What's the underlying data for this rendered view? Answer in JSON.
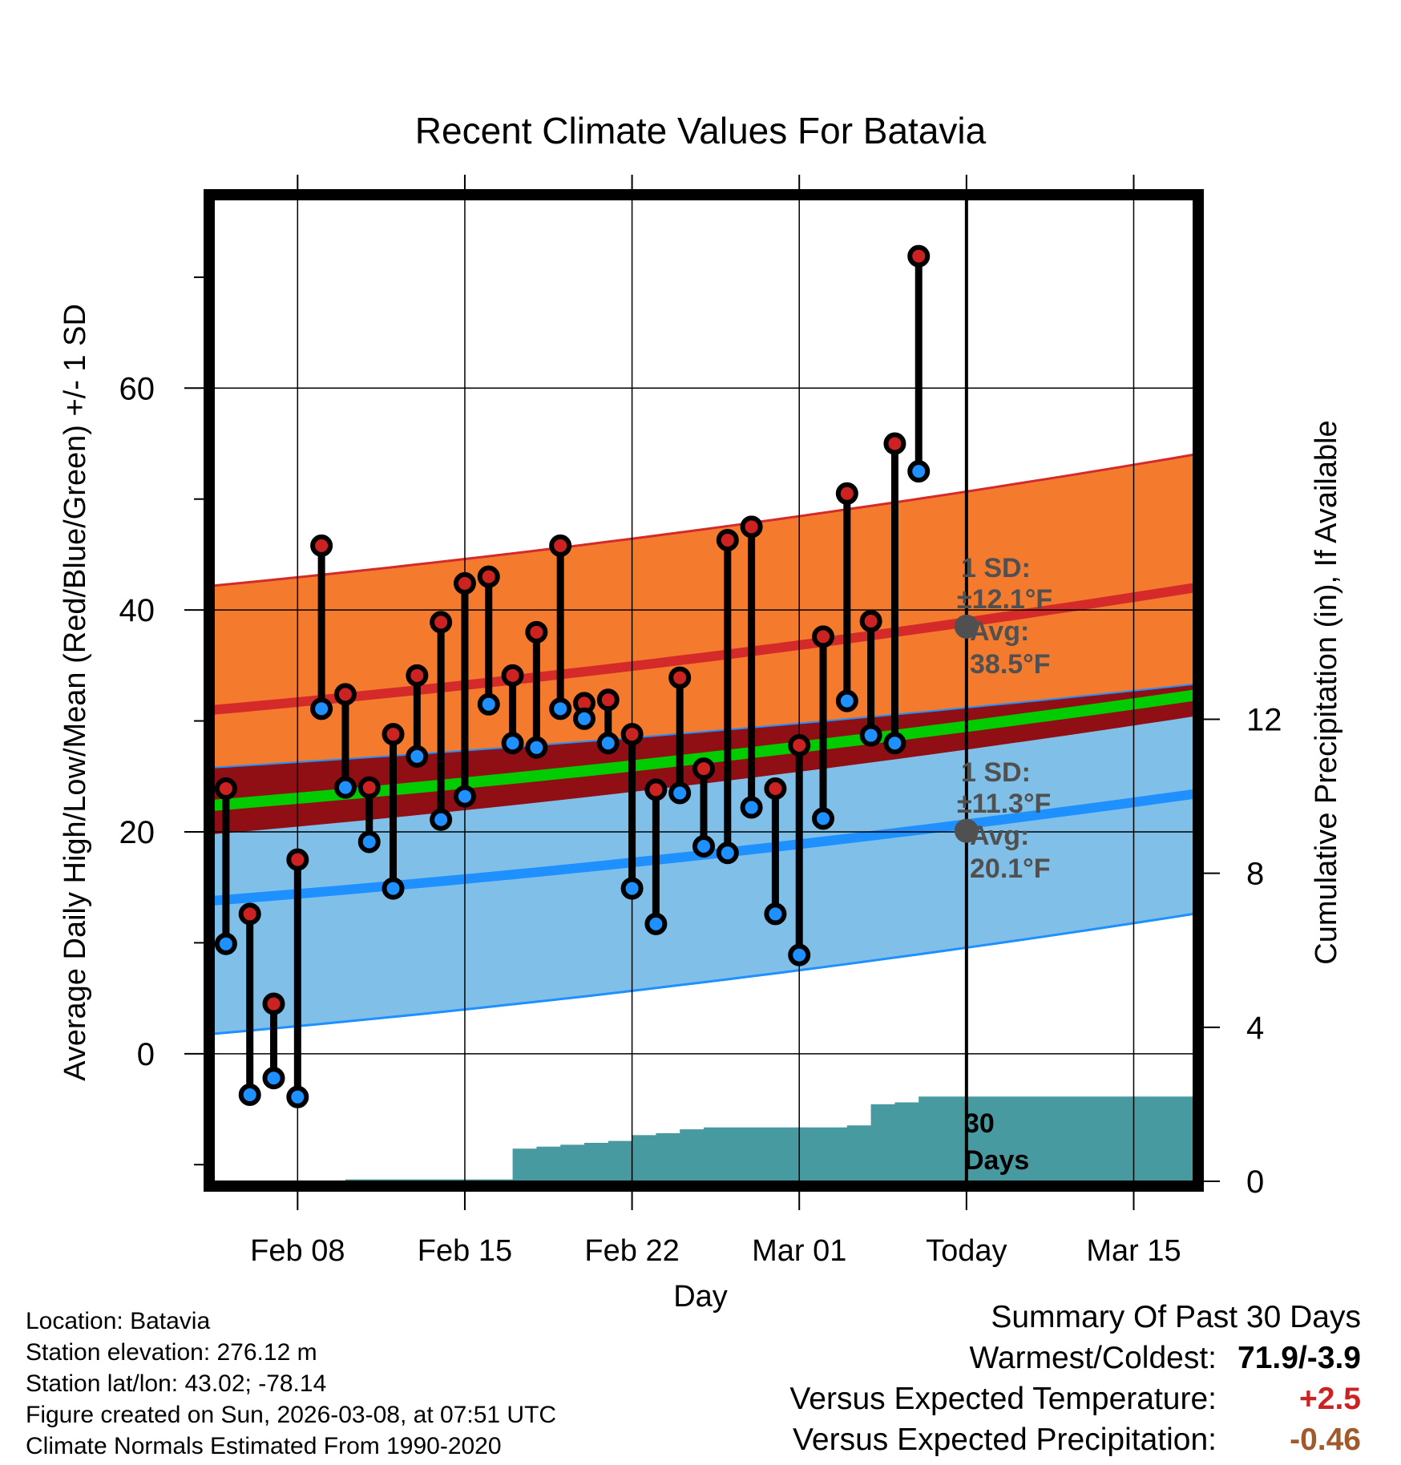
{
  "title": "Recent Climate Values For Batavia",
  "chart_data": {
    "type": "line",
    "title": "Recent Climate Values For Batavia",
    "xlabel": "Day",
    "ylabel": "Average Daily High/Low/Mean (Red/Blue/Green) +/- 1 SD",
    "y2label": "Cumulative Precipitation (in), If Available",
    "ylim": [
      -11.5,
      77
    ],
    "y2lim": [
      0,
      25.5
    ],
    "xlim": [
      -0.5,
      40.5
    ],
    "x_tick_labels": [
      {
        "day": 3,
        "label": "Feb 08"
      },
      {
        "day": 10,
        "label": "Feb 15"
      },
      {
        "day": 17,
        "label": "Feb 22"
      },
      {
        "day": 24,
        "label": "Mar 01"
      },
      {
        "day": 31,
        "label": "Today"
      },
      {
        "day": 38,
        "label": "Mar 15"
      }
    ],
    "y_ticks": [
      "0",
      "20",
      "40",
      "60"
    ],
    "y_minor_ticks": [
      -10,
      10,
      30,
      50,
      70
    ],
    "y2_ticks": [
      "0",
      "4",
      "8",
      "12"
    ],
    "today_day": 31,
    "normals_days": [
      -0.5,
      40.5
    ],
    "normal_high": {
      "avg": [
        31.0,
        42.0
      ],
      "upper": [
        42.2,
        54.0
      ],
      "lower": [
        19.8,
        30.4
      ]
    },
    "normal_mean": [
      22.4,
      32.3
    ],
    "normal_low": {
      "avg": [
        13.8,
        23.4
      ],
      "upper": [
        25.8,
        33.3
      ],
      "lower": [
        1.8,
        12.6
      ]
    },
    "daily": [
      {
        "day": 0,
        "high": 23.9,
        "low": 9.9
      },
      {
        "day": 1,
        "high": 12.6,
        "low": -3.7
      },
      {
        "day": 2,
        "high": 4.5,
        "low": -2.2
      },
      {
        "day": 3,
        "high": 17.5,
        "low": -3.9
      },
      {
        "day": 4,
        "high": 45.8,
        "low": 31.1
      },
      {
        "day": 5,
        "high": 32.4,
        "low": 24.0
      },
      {
        "day": 6,
        "high": 24.0,
        "low": 19.1
      },
      {
        "day": 7,
        "high": 28.8,
        "low": 14.9
      },
      {
        "day": 8,
        "high": 34.1,
        "low": 26.8
      },
      {
        "day": 9,
        "high": 38.9,
        "low": 21.1
      },
      {
        "day": 10,
        "high": 42.4,
        "low": 23.2
      },
      {
        "day": 11,
        "high": 43.0,
        "low": 31.5
      },
      {
        "day": 12,
        "high": 34.1,
        "low": 28.0
      },
      {
        "day": 13,
        "high": 38.0,
        "low": 27.6
      },
      {
        "day": 14,
        "high": 45.8,
        "low": 31.1
      },
      {
        "day": 15,
        "high": 31.6,
        "low": 30.2
      },
      {
        "day": 16,
        "high": 31.9,
        "low": 28.0
      },
      {
        "day": 17,
        "high": 28.8,
        "low": 14.9
      },
      {
        "day": 18,
        "high": 23.8,
        "low": 11.7
      },
      {
        "day": 19,
        "high": 33.9,
        "low": 23.5
      },
      {
        "day": 20,
        "high": 25.7,
        "low": 18.7
      },
      {
        "day": 21,
        "high": 46.3,
        "low": 18.1
      },
      {
        "day": 22,
        "high": 47.5,
        "low": 22.2
      },
      {
        "day": 23,
        "high": 23.9,
        "low": 12.6
      },
      {
        "day": 24,
        "high": 27.8,
        "low": 8.9
      },
      {
        "day": 25,
        "high": 37.6,
        "low": 21.2
      },
      {
        "day": 26,
        "high": 50.5,
        "low": 31.8
      },
      {
        "day": 27,
        "high": 39.0,
        "low": 28.7
      },
      {
        "day": 28,
        "high": 55.0,
        "low": 28.0
      },
      {
        "day": 29,
        "high": 71.9,
        "low": 52.5
      }
    ],
    "precip_steps": [
      {
        "day": 0,
        "value": 0.0
      },
      {
        "day": 5,
        "value": 0.05
      },
      {
        "day": 11,
        "value": 0.05
      },
      {
        "day": 12,
        "value": 0.85
      },
      {
        "day": 13,
        "value": 0.9
      },
      {
        "day": 14,
        "value": 0.95
      },
      {
        "day": 15,
        "value": 1.0
      },
      {
        "day": 16,
        "value": 1.05
      },
      {
        "day": 17,
        "value": 1.2
      },
      {
        "day": 18,
        "value": 1.25
      },
      {
        "day": 19,
        "value": 1.35
      },
      {
        "day": 20,
        "value": 1.4
      },
      {
        "day": 26,
        "value": 1.45
      },
      {
        "day": 27,
        "value": 2.0
      },
      {
        "day": 28,
        "value": 2.05
      },
      {
        "day": 29,
        "value": 2.2
      },
      {
        "day": 40.5,
        "value": 2.2
      }
    ],
    "annotations": {
      "high_sd_label": "1 SD:",
      "high_sd_value": "±12.1°F",
      "high_avg_label": "Avg:",
      "high_avg_value": "38.5°F",
      "high_avg_point": 38.5,
      "low_sd_label": "1 SD:",
      "low_sd_value": "±11.3°F",
      "low_avg_label": "Avg:",
      "low_avg_value": "20.1°F",
      "low_avg_point": 20.1,
      "precip_label_1": "30",
      "precip_label_2": "Days"
    },
    "colors": {
      "high_band": "#f47b2e",
      "high_line": "#d42a2a",
      "mean_band": "#8f0f14",
      "mean_line": "#00cc00",
      "low_band": "#80c0e8",
      "low_line": "#1e90ff",
      "precip": "#479aa0",
      "high_marker": "#cc2222",
      "low_marker": "#1e90ff",
      "annotation": "#505050"
    }
  },
  "info": {
    "location": "Location: Batavia",
    "elevation": "Station elevation: 276.12 m",
    "latlon": "Station lat/lon: 43.02; -78.14",
    "created": "Figure created on Sun, 2026-03-08, at 07:51 UTC",
    "normals": "Climate Normals Estimated From 1990-2020"
  },
  "summary": {
    "title": "Summary Of Past 30 Days",
    "warm_cold_label": "Warmest/Coldest:",
    "warm_cold_value": "71.9/-3.9",
    "temp_label": "Versus Expected Temperature:",
    "temp_value": "+2.5",
    "temp_color": "#cc2222",
    "precip_label": "Versus Expected Precipitation:",
    "precip_value": "-0.46",
    "precip_color": "#a05a2c"
  }
}
